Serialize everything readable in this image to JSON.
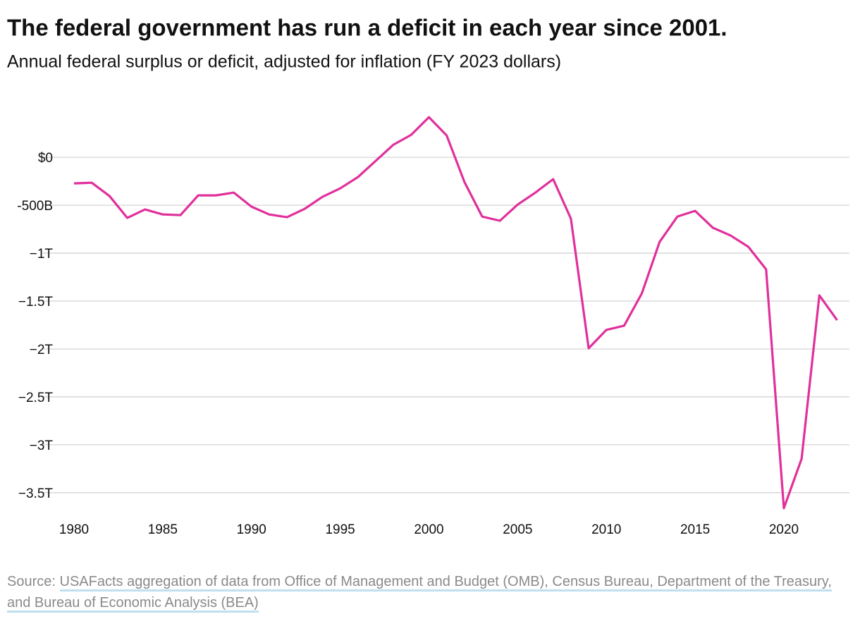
{
  "chart_data": {
    "type": "line",
    "title": "The federal government has run a deficit in each year since 2001.",
    "subtitle": "Annual federal surplus or deficit, adjusted for inflation (FY 2023 dollars)",
    "x": [
      1980,
      1981,
      1982,
      1983,
      1984,
      1985,
      1986,
      1987,
      1988,
      1989,
      1990,
      1991,
      1992,
      1993,
      1994,
      1995,
      1996,
      1997,
      1998,
      1999,
      2000,
      2001,
      2002,
      2003,
      2004,
      2005,
      2006,
      2007,
      2008,
      2009,
      2010,
      2011,
      2012,
      2013,
      2014,
      2015,
      2016,
      2017,
      2018,
      2019,
      2020,
      2021,
      2022,
      2023
    ],
    "values": [
      -272,
      -265,
      -404,
      -632,
      -544,
      -596,
      -603,
      -397,
      -397,
      -368,
      -515,
      -596,
      -625,
      -537,
      -412,
      -324,
      -206,
      -37,
      132,
      235,
      419,
      228,
      -257,
      -618,
      -662,
      -493,
      -368,
      -228,
      -640,
      -1993,
      -1801,
      -1757,
      -1419,
      -882,
      -618,
      -559,
      -735,
      -816,
      -934,
      -1169,
      -3662,
      -3147,
      -1441,
      -1699
    ],
    "color": "#e0309b",
    "xlim": [
      1980,
      2023
    ],
    "xticks": [
      1980,
      1985,
      1990,
      1995,
      2000,
      2005,
      2010,
      2015,
      2020
    ],
    "ylim": [
      -3700,
      450
    ],
    "yticks": [
      {
        "value": 0,
        "label": "$0"
      },
      {
        "value": -500,
        "label": "-500B"
      },
      {
        "value": -1000,
        "label": "−1T"
      },
      {
        "value": -1500,
        "label": "−1.5T"
      },
      {
        "value": -2000,
        "label": "−2T"
      },
      {
        "value": -2500,
        "label": "−2.5T"
      },
      {
        "value": -3000,
        "label": "−3T"
      },
      {
        "value": -3500,
        "label": "−3.5T"
      }
    ],
    "grid": true,
    "source": {
      "label": "Source:",
      "text": "USAFacts aggregation of data from Office of Management and Budget (OMB), Census Bureau, Department of the Treasury, and Bureau of Economic Analysis (BEA)"
    }
  }
}
